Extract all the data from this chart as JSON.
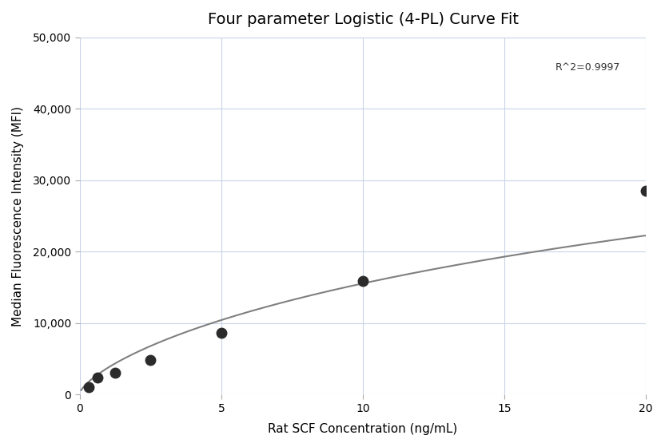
{
  "title": "Four parameter Logistic (4-PL) Curve Fit",
  "xlabel": "Rat SCF Concentration (ng/mL)",
  "ylabel": "Median Fluorescence Intensity (MFI)",
  "scatter_x": [
    0.313,
    0.625,
    1.25,
    2.5,
    5.0,
    10.0,
    20.0
  ],
  "scatter_y": [
    1050,
    2400,
    3100,
    4900,
    8600,
    15900,
    28500
  ],
  "r_squared": "R^2=0.9997",
  "r2_x": 16.8,
  "r2_y": 46500,
  "xlim": [
    0,
    20
  ],
  "ylim": [
    0,
    50000
  ],
  "yticks": [
    0,
    10000,
    20000,
    30000,
    40000,
    50000
  ],
  "xticks": [
    0,
    5,
    10,
    15,
    20
  ],
  "marker_color": "#2b2b2b",
  "marker_size": 9,
  "line_color": "#808080",
  "line_width": 1.5,
  "grid_color": "#c8d4e8",
  "background_color": "#ffffff",
  "title_fontsize": 14,
  "label_fontsize": 11,
  "tick_fontsize": 10,
  "four_pl_A": 200,
  "four_pl_B": 0.72,
  "four_pl_C": 55.0,
  "four_pl_D": 68000
}
